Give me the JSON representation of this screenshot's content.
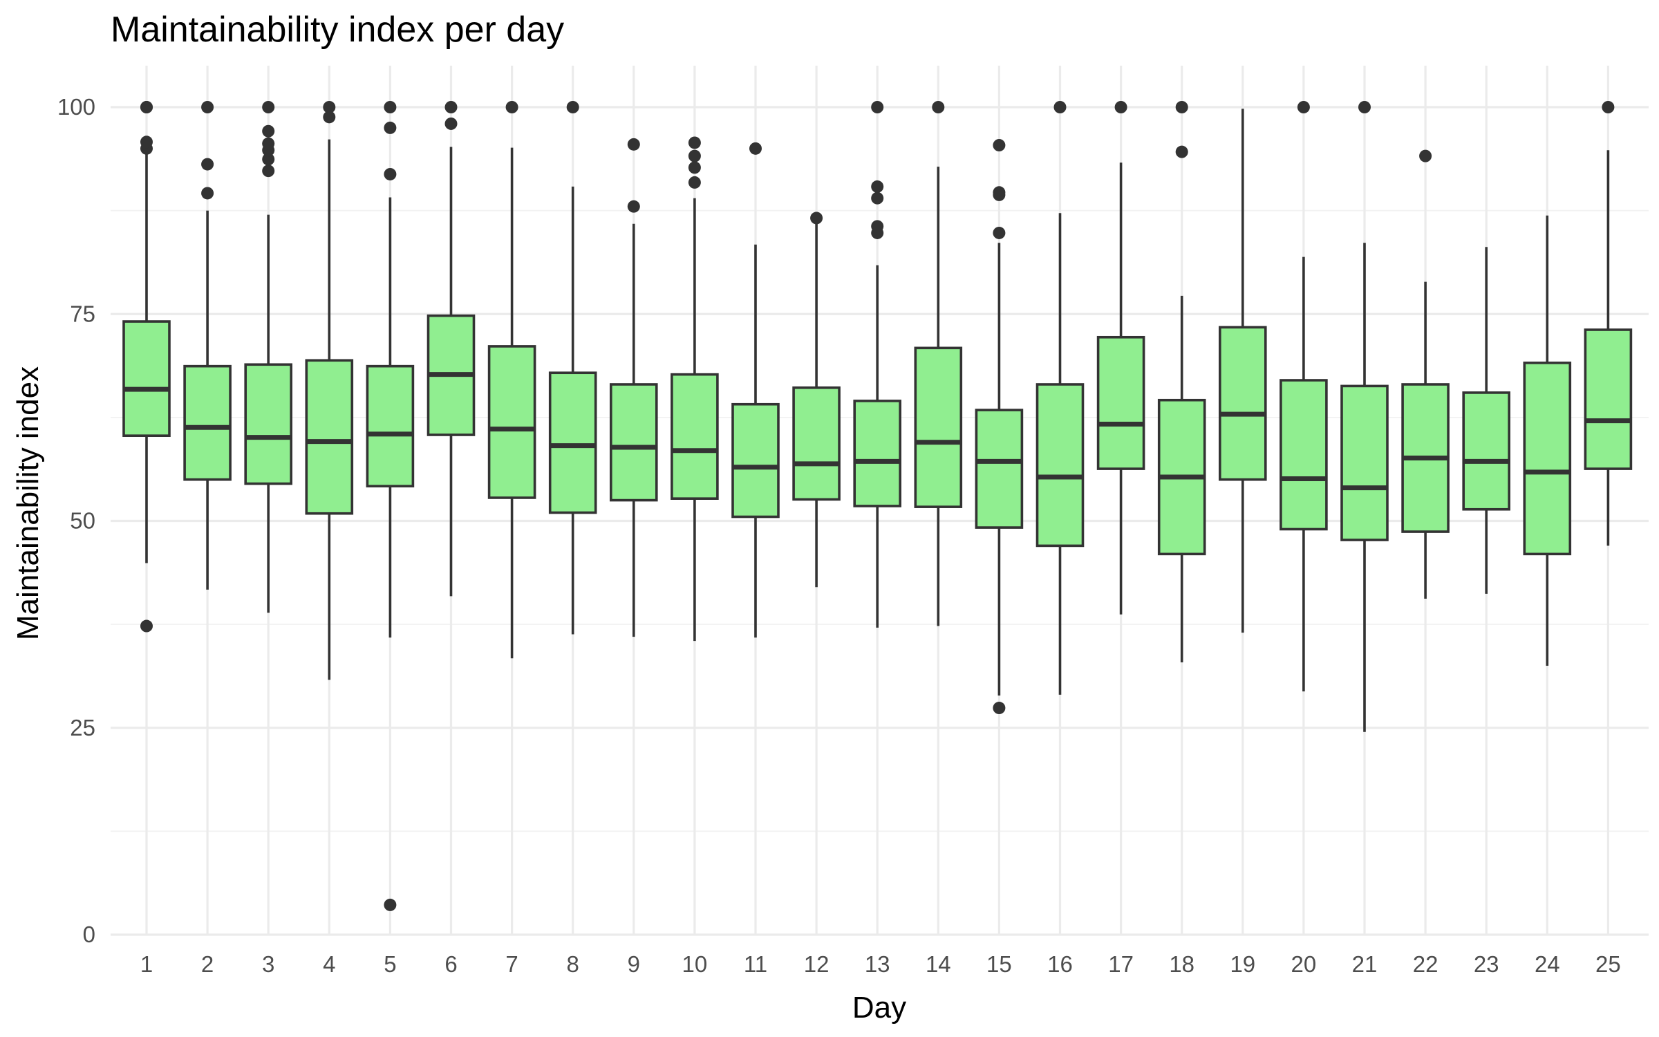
{
  "chart_data": {
    "type": "boxplot",
    "title": "Maintainability index per day",
    "xlabel": "Day",
    "ylabel": "Maintainability index",
    "ylim": [
      0,
      100
    ],
    "yticks": [
      0,
      25,
      50,
      75,
      100
    ],
    "grid": true,
    "legend": "none",
    "fill_color": "#90ee90",
    "line_color": "#333333",
    "categories": [
      "1",
      "2",
      "3",
      "4",
      "5",
      "6",
      "7",
      "8",
      "9",
      "10",
      "11",
      "12",
      "13",
      "14",
      "15",
      "16",
      "17",
      "18",
      "19",
      "20",
      "21",
      "22",
      "23",
      "24",
      "25"
    ],
    "boxes": [
      {
        "day": "1",
        "whisker_low": 44.9,
        "q1": 60.3,
        "median": 65.9,
        "q3": 74.1,
        "whisker_high": 94.6,
        "outliers": [
          37.3,
          95.0,
          95.8,
          100,
          100
        ]
      },
      {
        "day": "2",
        "whisker_low": 41.7,
        "q1": 55.0,
        "median": 61.3,
        "q3": 68.7,
        "whisker_high": 87.5,
        "outliers": [
          89.6,
          93.1,
          100
        ]
      },
      {
        "day": "3",
        "whisker_low": 38.9,
        "q1": 54.5,
        "median": 60.1,
        "q3": 68.9,
        "whisker_high": 87.0,
        "outliers": [
          92.3,
          93.7,
          94.8,
          95.6,
          97.1,
          100
        ]
      },
      {
        "day": "4",
        "whisker_low": 30.8,
        "q1": 50.9,
        "median": 59.6,
        "q3": 69.4,
        "whisker_high": 96.1,
        "outliers": [
          98.8,
          100
        ]
      },
      {
        "day": "5",
        "whisker_low": 35.9,
        "q1": 54.2,
        "median": 60.5,
        "q3": 68.7,
        "whisker_high": 89.1,
        "outliers": [
          3.6,
          91.9,
          97.5,
          100
        ]
      },
      {
        "day": "6",
        "whisker_low": 40.9,
        "q1": 60.4,
        "median": 67.7,
        "q3": 74.8,
        "whisker_high": 95.2,
        "outliers": [
          98.0,
          100
        ]
      },
      {
        "day": "7",
        "whisker_low": 33.4,
        "q1": 52.8,
        "median": 61.1,
        "q3": 71.1,
        "whisker_high": 95.1,
        "outliers": [
          100
        ]
      },
      {
        "day": "8",
        "whisker_low": 36.3,
        "q1": 51.0,
        "median": 59.1,
        "q3": 67.9,
        "whisker_high": 90.4,
        "outliers": [
          100
        ]
      },
      {
        "day": "9",
        "whisker_low": 36.0,
        "q1": 52.5,
        "median": 58.9,
        "q3": 66.5,
        "whisker_high": 85.9,
        "outliers": [
          88.0,
          95.5
        ]
      },
      {
        "day": "10",
        "whisker_low": 35.5,
        "q1": 52.7,
        "median": 58.5,
        "q3": 67.7,
        "whisker_high": 89.0,
        "outliers": [
          90.9,
          92.7,
          94.1,
          95.7
        ]
      },
      {
        "day": "11",
        "whisker_low": 35.9,
        "q1": 50.5,
        "median": 56.5,
        "q3": 64.1,
        "whisker_high": 83.4,
        "outliers": [
          95.0
        ]
      },
      {
        "day": "12",
        "whisker_low": 42.0,
        "q1": 52.6,
        "median": 56.9,
        "q3": 66.1,
        "whisker_high": 86.4,
        "outliers": [
          86.6
        ]
      },
      {
        "day": "13",
        "whisker_low": 37.1,
        "q1": 51.8,
        "median": 57.2,
        "q3": 64.5,
        "whisker_high": 80.9,
        "outliers": [
          84.8,
          85.6,
          89.0,
          90.4,
          100
        ]
      },
      {
        "day": "14",
        "whisker_low": 37.3,
        "q1": 51.7,
        "median": 59.5,
        "q3": 70.9,
        "whisker_high": 92.8,
        "outliers": [
          100
        ]
      },
      {
        "day": "15",
        "whisker_low": 28.9,
        "q1": 49.2,
        "median": 57.2,
        "q3": 63.4,
        "whisker_high": 83.6,
        "outliers": [
          27.4,
          84.8,
          89.4,
          89.7,
          95.4
        ]
      },
      {
        "day": "16",
        "whisker_low": 29.0,
        "q1": 47.0,
        "median": 55.3,
        "q3": 66.5,
        "whisker_high": 87.2,
        "outliers": [
          100
        ]
      },
      {
        "day": "17",
        "whisker_low": 38.7,
        "q1": 56.3,
        "median": 61.7,
        "q3": 72.2,
        "whisker_high": 93.3,
        "outliers": [
          100
        ]
      },
      {
        "day": "18",
        "whisker_low": 32.9,
        "q1": 46.0,
        "median": 55.3,
        "q3": 64.6,
        "whisker_high": 77.2,
        "outliers": [
          94.6,
          100
        ]
      },
      {
        "day": "19",
        "whisker_low": 36.5,
        "q1": 55.0,
        "median": 62.9,
        "q3": 73.4,
        "whisker_high": 99.8,
        "outliers": []
      },
      {
        "day": "20",
        "whisker_low": 29.4,
        "q1": 49.0,
        "median": 55.1,
        "q3": 67.0,
        "whisker_high": 81.9,
        "outliers": [
          100
        ]
      },
      {
        "day": "21",
        "whisker_low": 24.5,
        "q1": 47.7,
        "median": 54.0,
        "q3": 66.3,
        "whisker_high": 83.6,
        "outliers": [
          100
        ]
      },
      {
        "day": "22",
        "whisker_low": 40.6,
        "q1": 48.7,
        "median": 57.6,
        "q3": 66.5,
        "whisker_high": 78.9,
        "outliers": [
          94.1
        ]
      },
      {
        "day": "23",
        "whisker_low": 41.2,
        "q1": 51.4,
        "median": 57.2,
        "q3": 65.5,
        "whisker_high": 83.1,
        "outliers": []
      },
      {
        "day": "24",
        "whisker_low": 32.5,
        "q1": 46.0,
        "median": 55.9,
        "q3": 69.1,
        "whisker_high": 86.9,
        "outliers": []
      },
      {
        "day": "25",
        "whisker_low": 47.0,
        "q1": 56.3,
        "median": 62.1,
        "q3": 73.1,
        "whisker_high": 94.8,
        "outliers": [
          100
        ]
      }
    ]
  }
}
